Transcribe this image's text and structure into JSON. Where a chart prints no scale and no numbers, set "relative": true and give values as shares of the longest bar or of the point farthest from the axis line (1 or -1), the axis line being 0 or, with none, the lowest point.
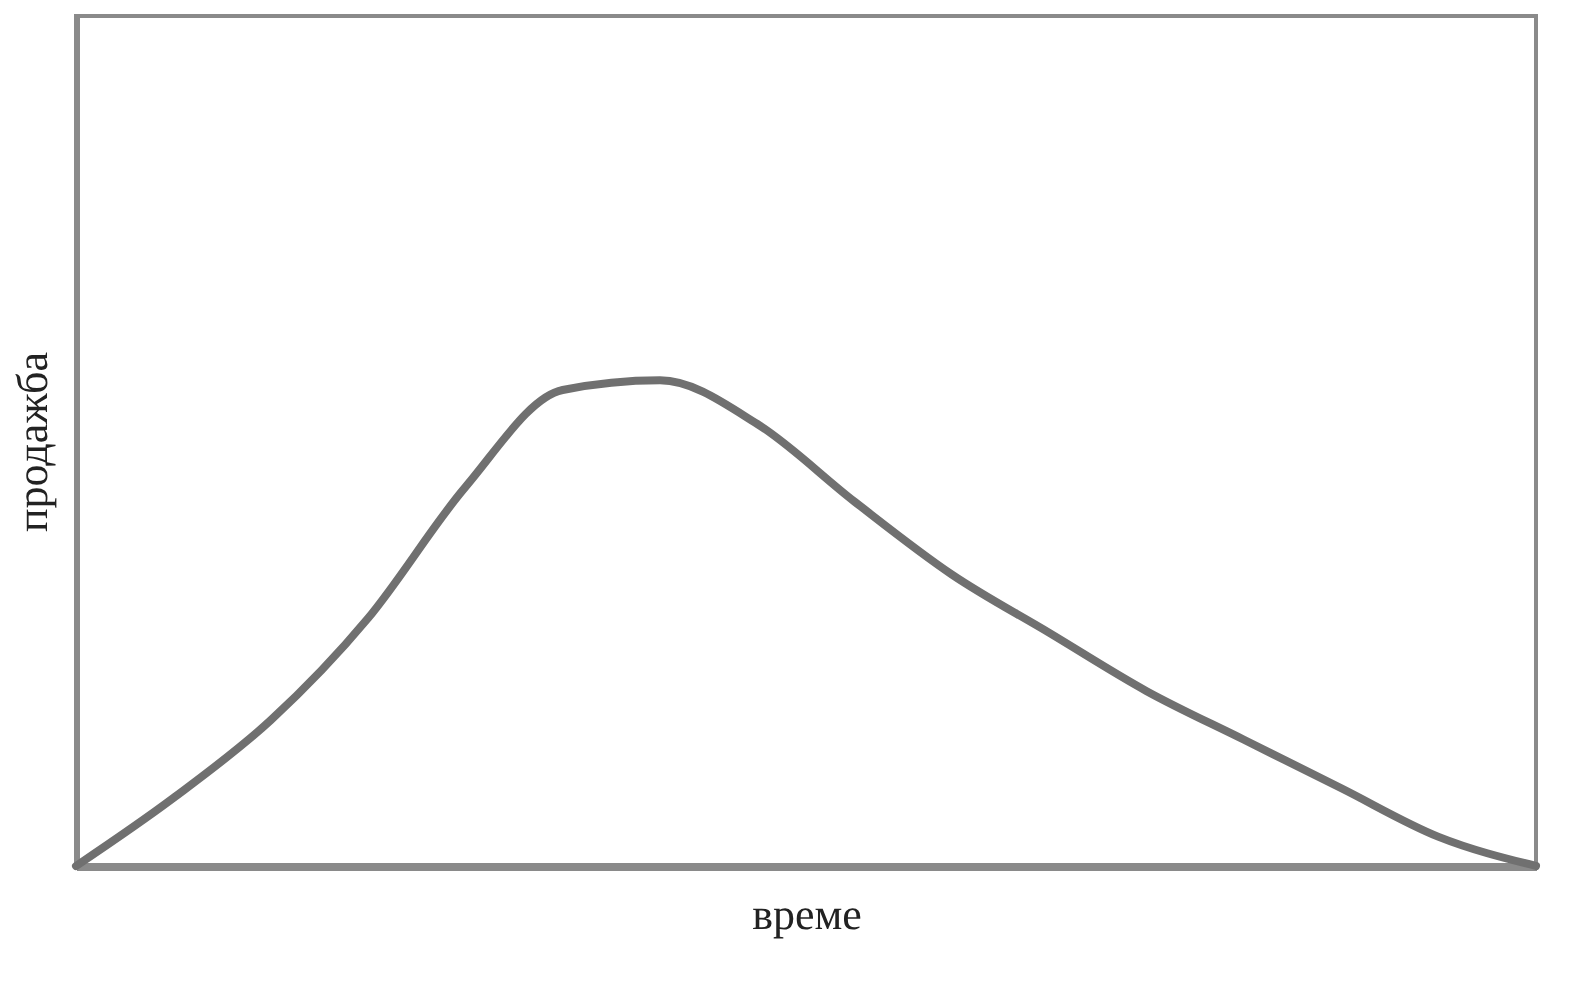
{
  "chart_data": {
    "type": "line",
    "relative": true,
    "xlabel": "време",
    "ylabel": "продажба",
    "categories": [
      null,
      null,
      null,
      null,
      null,
      null,
      null,
      null,
      null,
      null,
      null,
      null,
      null,
      null,
      null,
      null
    ],
    "series": [
      {
        "color": "#707070",
        "values": [
          0,
          0.14,
          0.3,
          0.51,
          0.78,
          0.98,
          1.0,
          0.91,
          0.75,
          0.6,
          0.48,
          0.36,
          0.26,
          0.16,
          0.06,
          0
        ]
      }
    ],
    "grid": false,
    "tick_labels": false,
    "marker": "none",
    "line_style": "solid"
  }
}
